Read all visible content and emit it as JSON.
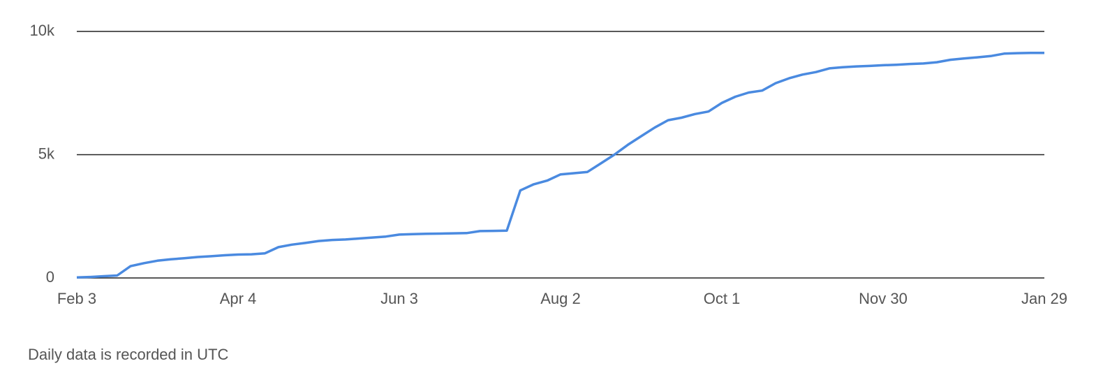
{
  "chart_data": {
    "type": "line",
    "footnote": "Daily data is recorded in UTC",
    "categories": [
      "Feb 3",
      null,
      null,
      null,
      null,
      null,
      null,
      null,
      null,
      null,
      null,
      null,
      "Apr 4",
      null,
      null,
      null,
      null,
      null,
      null,
      null,
      null,
      null,
      null,
      null,
      "Jun 3",
      null,
      null,
      null,
      null,
      null,
      null,
      null,
      null,
      null,
      null,
      null,
      "Aug 2",
      null,
      null,
      null,
      null,
      null,
      null,
      null,
      null,
      null,
      null,
      null,
      "Oct 1",
      null,
      null,
      null,
      null,
      null,
      null,
      null,
      null,
      null,
      null,
      null,
      "Nov 30",
      null,
      null,
      null,
      null,
      null,
      null,
      null,
      null,
      null,
      null,
      null,
      "Jan 29"
    ],
    "series": [
      {
        "color": "#4a8ae0",
        "values": [
          20,
          40,
          70,
          100,
          480,
          600,
          700,
          760,
          800,
          850,
          880,
          920,
          950,
          960,
          1000,
          1250,
          1350,
          1420,
          1500,
          1540,
          1560,
          1600,
          1640,
          1680,
          1760,
          1780,
          1790,
          1800,
          1810,
          1820,
          1900,
          1910,
          1920,
          3550,
          3800,
          3950,
          4200,
          4250,
          4300,
          4650,
          5000,
          5400,
          5750,
          6100,
          6400,
          6500,
          6650,
          6750,
          7100,
          7350,
          7520,
          7600,
          7900,
          8100,
          8250,
          8350,
          8500,
          8550,
          8580,
          8600,
          8630,
          8650,
          8680,
          8700,
          8750,
          8850,
          8900,
          8950,
          9000,
          9100,
          9120,
          9130,
          9130
        ]
      }
    ],
    "ylim": [
      0,
      10000
    ],
    "yticks": [
      0,
      {
        "value": 5000,
        "label": "5k"
      },
      {
        "value": 10000,
        "label": "10k"
      }
    ],
    "grid": true
  }
}
